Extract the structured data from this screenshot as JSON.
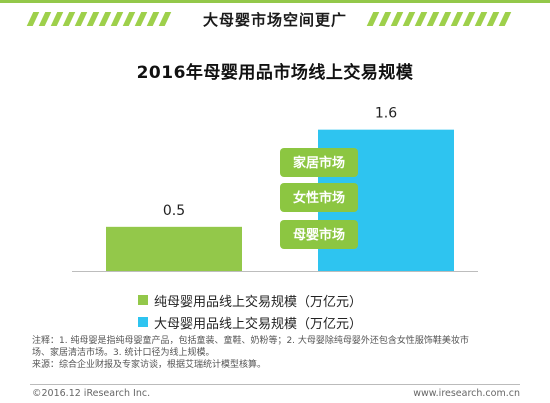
{
  "header": {
    "title": "大母婴市场空间更广"
  },
  "chart_data": {
    "type": "bar",
    "title": "2016年母婴用品市场线上交易规模",
    "categories": [
      "纯母婴用品线上交易规模（万亿元）",
      "大母婴用品线上交易规模（万亿元）"
    ],
    "values": [
      0.5,
      1.6
    ],
    "value_labels": [
      "0.5",
      "1.6"
    ],
    "colors": [
      "#93c84a",
      "#2ec4f0"
    ],
    "ylim": [
      0,
      1.8
    ],
    "annotations": [
      "家居市场",
      "女性市场",
      "母婴市场"
    ],
    "annotation_color": "#8cc641",
    "legend": [
      {
        "label": "纯母婴用品线上交易规模（万亿元）",
        "color": "#93c84a"
      },
      {
        "label": "大母婴用品线上交易规模（万亿元）",
        "color": "#2ec4f0"
      }
    ],
    "legend_position": "bottom"
  },
  "notes": [
    "注释：1. 纯母婴是指纯母婴童产品，包括童装、童鞋、奶粉等；2. 大母婴除纯母婴外还包含女性服饰鞋美妆市",
    "场、家居清洁市场。3. 统计口径为线上规模。",
    "来源：综合企业财报及专家访谈，根据艾瑞统计模型核算。"
  ],
  "footer": {
    "copyright": "©2016.12 iResearch Inc.",
    "website": "www.iresearch.com.cn"
  }
}
